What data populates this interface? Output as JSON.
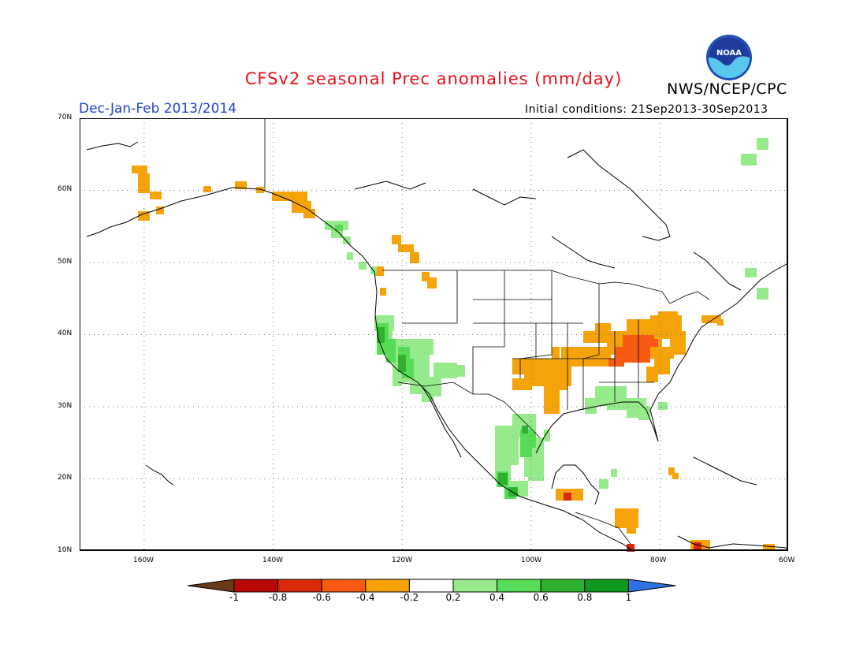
{
  "title": "CFSv2 seasonal Prec anomalies (mm/day)",
  "agency": "NWS/NCEP/CPC",
  "logo_text": "NOAA",
  "season": "Dec-Jan-Feb 2013/2014",
  "initial_conditions": "Initial conditions: 21Sep2013-30Sep2013",
  "colors": {
    "title": "#e8101a",
    "season": "#2244cc",
    "dark_brown": "#6b3a16",
    "dark_red": "#b80808",
    "red": "#d82a0a",
    "orange_red": "#f85a14",
    "orange": "#f6a30a",
    "white": "#ffffff",
    "light_green": "#96ea8c",
    "green": "#56dc56",
    "mid_green": "#2eb22e",
    "dark_green": "#0e9a1c",
    "blue": "#2e72e4"
  },
  "map": {
    "lat_labels": [
      "70N",
      "60N",
      "50N",
      "40N",
      "30N",
      "20N",
      "10N"
    ],
    "lon_labels": [
      "160W",
      "140W",
      "120W",
      "100W",
      "80W",
      "60W"
    ]
  },
  "colorbar": {
    "labels": [
      "-1",
      "-0.8",
      "-0.6",
      "-0.4",
      "-0.2",
      "0.2",
      "0.4",
      "0.6",
      "0.8",
      "1"
    ]
  }
}
